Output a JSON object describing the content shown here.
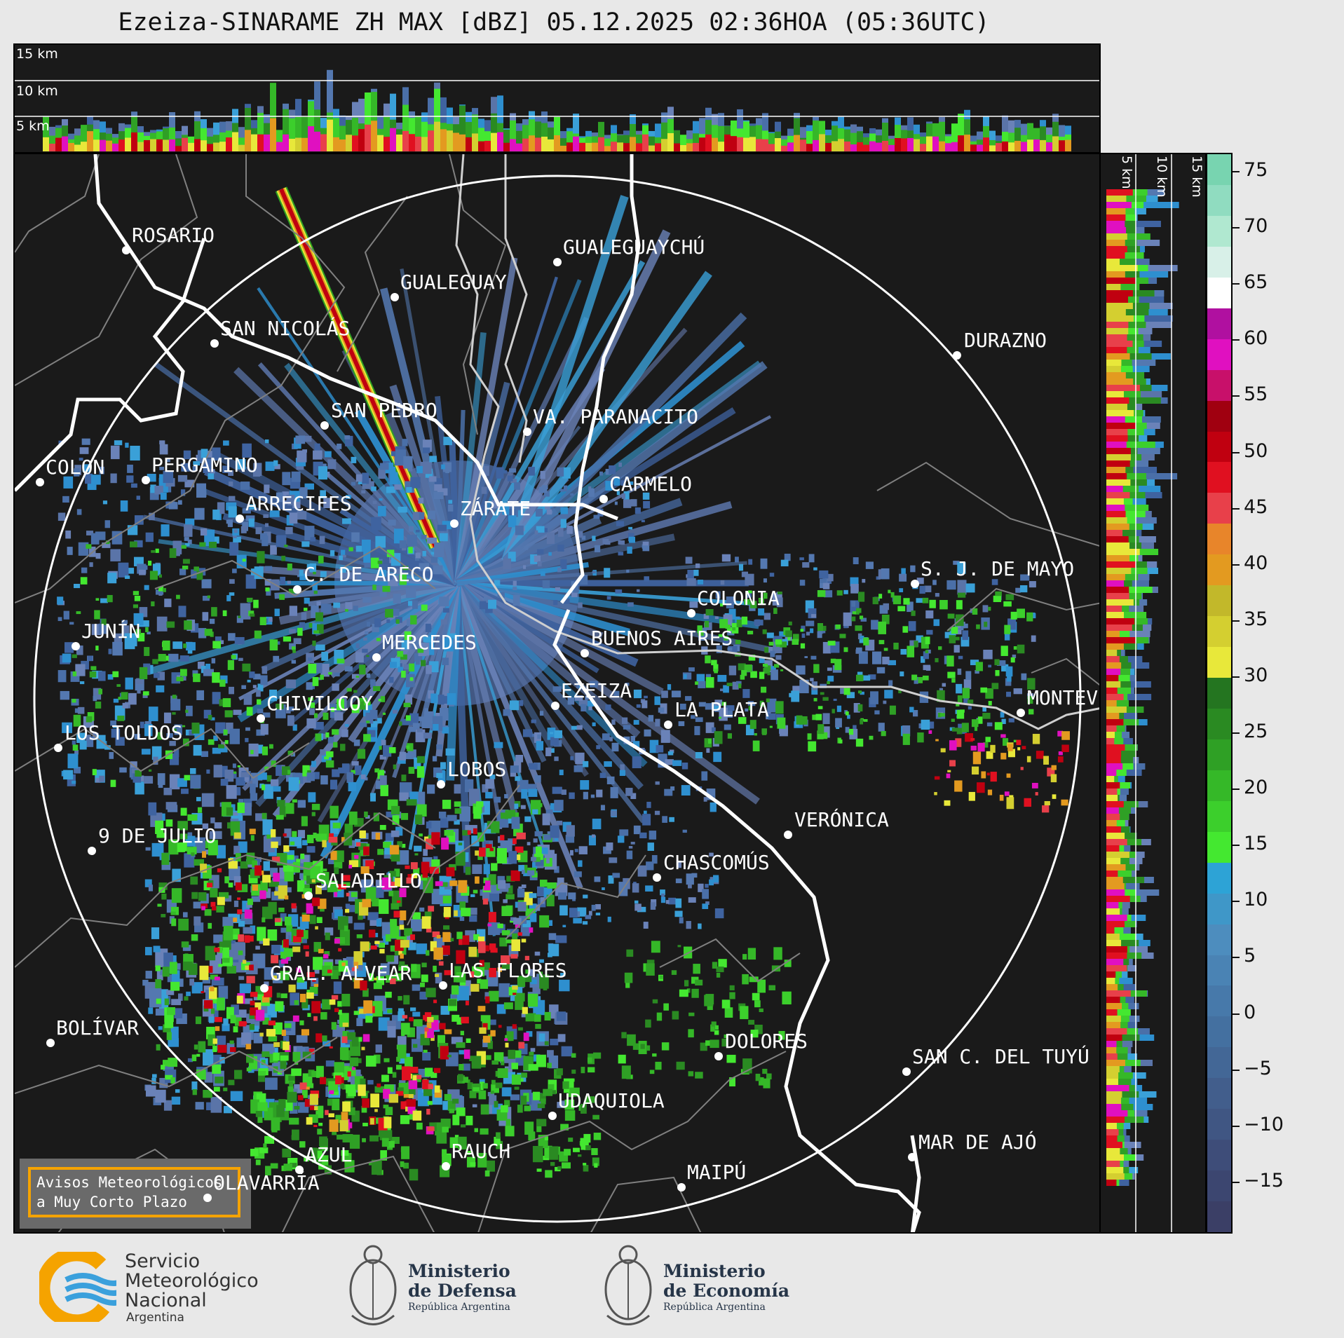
{
  "title": "Ezeiza-SINARAME ZH MAX [dBZ] 05.12.2025 02:36HOA (05:36UTC)",
  "top_panel": {
    "altitudes": [
      "15 km",
      "10 km",
      "5 km"
    ]
  },
  "side_panel": {
    "altitudes": [
      "5 km",
      "10 km",
      "15 km"
    ]
  },
  "colorbar": {
    "ticks": [
      "75",
      "70",
      "65",
      "60",
      "55",
      "50",
      "45",
      "40",
      "35",
      "30",
      "25",
      "20",
      "15",
      "10",
      "5",
      "0",
      "−5",
      "−10",
      "−15"
    ],
    "colors": [
      "#3b3f66",
      "#3c4670",
      "#3e4d79",
      "#405683",
      "#425e8c",
      "#436796",
      "#4470a0",
      "#4779aa",
      "#4a83b4",
      "#4d8dbe",
      "#3f97c8",
      "#2da3d6",
      "#44e830",
      "#3ccf2c",
      "#35b828",
      "#2fa025",
      "#2a8a22",
      "#247520",
      "#e8e83a",
      "#d4cf30",
      "#c2b82a",
      "#e39a20",
      "#e8852a",
      "#e8404a",
      "#e01020",
      "#c00010",
      "#a00010",
      "#c8106a",
      "#e010c0",
      "#b010a0",
      "#ffffff",
      "#d8f0e8",
      "#b0e8d0",
      "#90dcc0",
      "#78d4b0"
    ],
    "range": [
      -20,
      76
    ]
  },
  "map": {
    "cities": [
      {
        "name": "ROSARIO"
      },
      {
        "name": "GUALEGUAYCHÚ"
      },
      {
        "name": "GUALEGUAY"
      },
      {
        "name": "SAN NICOLÁS"
      },
      {
        "name": "DURAZNO"
      },
      {
        "name": "SAN PEDRO"
      },
      {
        "name": "VA. PARANACITO"
      },
      {
        "name": "COLON"
      },
      {
        "name": "PERGAMINO"
      },
      {
        "name": "CARMELO"
      },
      {
        "name": "ARRECIFES"
      },
      {
        "name": "ZÁRATE"
      },
      {
        "name": "S. J. DE MAYO"
      },
      {
        "name": "C. DE ARECO"
      },
      {
        "name": "COLONIA"
      },
      {
        "name": "BUENOS AIRES"
      },
      {
        "name": "JUNÍN"
      },
      {
        "name": "MERCEDES"
      },
      {
        "name": "MONTEVIDEO"
      },
      {
        "name": "CHIVILCOY"
      },
      {
        "name": "EZEIZA"
      },
      {
        "name": "LA PLATA"
      },
      {
        "name": "LOS TOLDOS"
      },
      {
        "name": "LOBOS"
      },
      {
        "name": "VERÓNICA"
      },
      {
        "name": "9 DE JULIO"
      },
      {
        "name": "CHASCOMÚS"
      },
      {
        "name": "SALADILLO"
      },
      {
        "name": "GRAL. ALVEAR"
      },
      {
        "name": "LAS FLORES"
      },
      {
        "name": "BOLÍVAR"
      },
      {
        "name": "DOLORES"
      },
      {
        "name": "SAN C. DEL TUYÚ"
      },
      {
        "name": "UDAQUIOLA"
      },
      {
        "name": "MAR DE AJÓ"
      },
      {
        "name": "AZUL"
      },
      {
        "name": "RAUCH"
      },
      {
        "name": "OLAVARRÍA"
      },
      {
        "name": "MAIPÚ"
      }
    ]
  },
  "alerts_box": {
    "line1": "Avisos Meteorológicos",
    "line2": "a Muy Corto Plazo"
  },
  "logos": {
    "smn": {
      "line1": "Servicio",
      "line2": "Meteorológico",
      "line3": "Nacional",
      "line4": "Argentina"
    },
    "defensa": {
      "line1": "Ministerio",
      "line2": "de Defensa",
      "line3": "República Argentina"
    },
    "economia": {
      "line1": "Ministerio",
      "line2": "de Economía",
      "line3": "República Argentina"
    }
  }
}
